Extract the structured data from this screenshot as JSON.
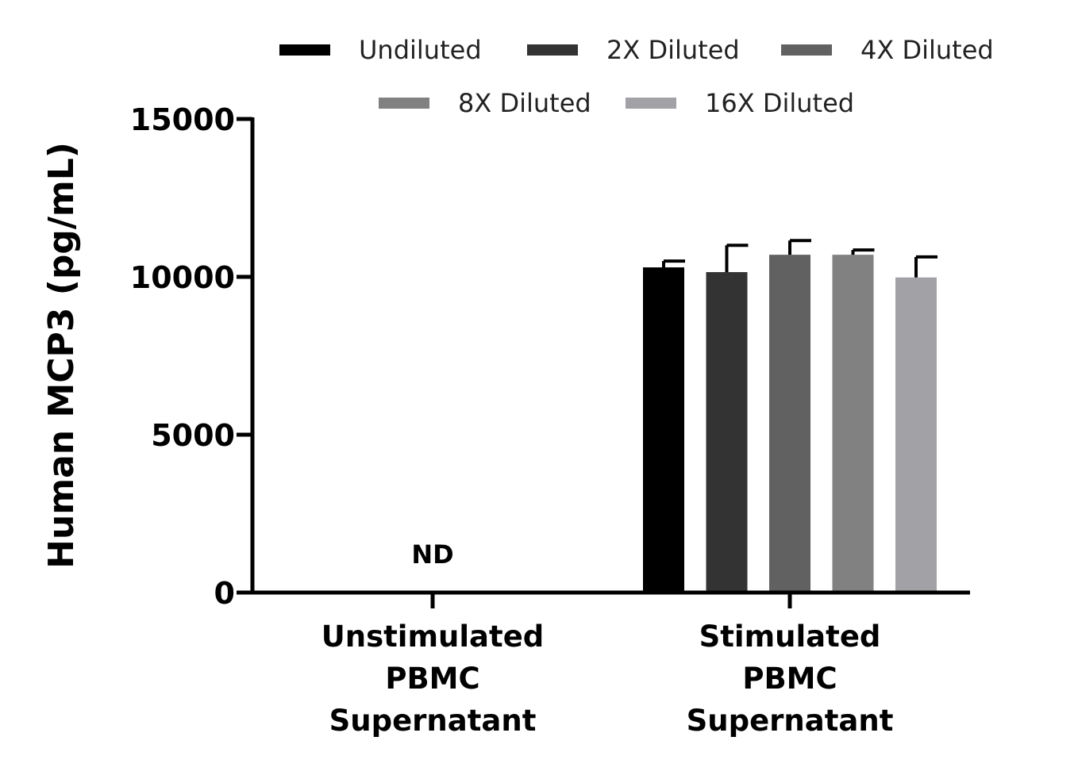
{
  "chart_data": {
    "type": "bar",
    "title": "",
    "xlabel": "",
    "ylabel": "Human MCP3 (pg/mL)",
    "ylim": [
      0,
      15000
    ],
    "yticks": [
      0,
      5000,
      10000,
      15000
    ],
    "ytick_labels": [
      "0",
      "5000",
      "10000",
      "15000"
    ],
    "grid": false,
    "legend_position": "top",
    "categories": [
      [
        "Unstimulated",
        "PBMC",
        "Supernatant"
      ],
      [
        "Stimulated",
        "PBMC",
        "Supernatant"
      ]
    ],
    "series": [
      {
        "name": "Undiluted",
        "color": "#000000",
        "values": [
          null,
          10300
        ],
        "errors": [
          null,
          200
        ]
      },
      {
        "name": "2X Diluted",
        "color": "#333333",
        "values": [
          null,
          10150
        ],
        "errors": [
          null,
          850
        ]
      },
      {
        "name": "4X Diluted",
        "color": "#616161",
        "values": [
          null,
          10700
        ],
        "errors": [
          null,
          450
        ]
      },
      {
        "name": "8X Diluted",
        "color": "#818181",
        "values": [
          null,
          10700
        ],
        "errors": [
          null,
          150
        ]
      },
      {
        "name": "16X Diluted",
        "color": "#a2a2a6",
        "values": [
          null,
          9980
        ],
        "errors": [
          null,
          650
        ]
      }
    ],
    "annotations": [
      {
        "category_index": 0,
        "text": "ND"
      }
    ]
  }
}
